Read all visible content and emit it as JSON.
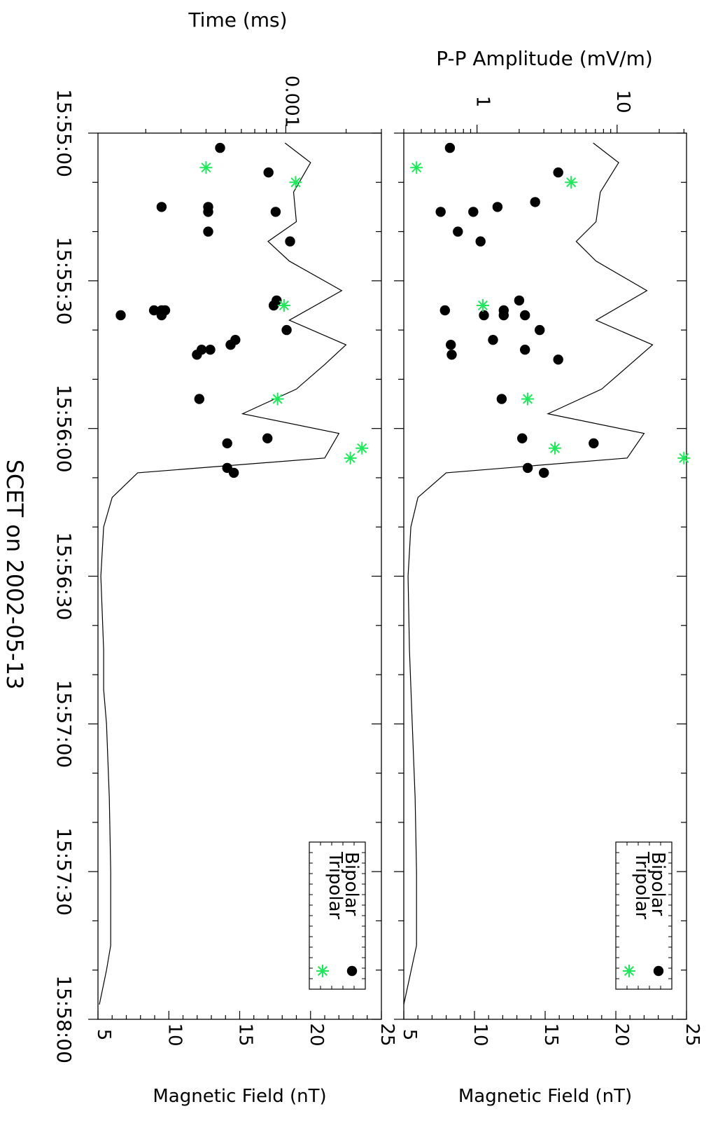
{
  "chart_data": {
    "type": "scatter",
    "x_axis_label": "SCET on 2002-05-13",
    "time_ticks": [
      "15:55:00",
      "15:55:30",
      "15:56:00",
      "15:56:30",
      "15:57:00",
      "15:57:30",
      "15:58:00"
    ],
    "panels": [
      {
        "id": "left",
        "top_axis_label": "Time (ms)",
        "top_axis_scale": "log",
        "top_axis_ticks": [
          "0.001"
        ],
        "bottom_axis_label": "Magnetic Field (nT)",
        "bottom_axis_ticks": [
          "5",
          "10",
          "15",
          "20",
          "25"
        ],
        "bottom_axis_range": [
          5,
          25
        ],
        "legend": {
          "entries": [
            {
              "label": "Bipolar",
              "marker": "filled-circle"
            },
            {
              "label": "Tripolar",
              "marker": "asterisk"
            }
          ]
        },
        "magnetic_field": [
          {
            "t": "15:55:02",
            "b": 18.2
          },
          {
            "t": "15:55:06",
            "b": 20.0
          },
          {
            "t": "15:55:12",
            "b": 18.8
          },
          {
            "t": "15:55:18",
            "b": 19.0
          },
          {
            "t": "15:55:22",
            "b": 17.0
          },
          {
            "t": "15:55:26",
            "b": 18.5
          },
          {
            "t": "15:55:32",
            "b": 22.2
          },
          {
            "t": "15:55:38",
            "b": 18.5
          },
          {
            "t": "15:55:43",
            "b": 22.5
          },
          {
            "t": "15:55:47",
            "b": 21.0
          },
          {
            "t": "15:55:52",
            "b": 19.0
          },
          {
            "t": "15:55:57",
            "b": 15.2
          },
          {
            "t": "15:56:01",
            "b": 22.0
          },
          {
            "t": "15:56:06",
            "b": 21.0
          },
          {
            "t": "15:56:09",
            "b": 7.8
          },
          {
            "t": "15:56:14",
            "b": 6.0
          },
          {
            "t": "15:56:20",
            "b": 5.4
          },
          {
            "t": "15:56:30",
            "b": 5.2
          },
          {
            "t": "15:56:45",
            "b": 5.4
          },
          {
            "t": "15:56:53",
            "b": 5.4
          },
          {
            "t": "15:57:00",
            "b": 5.6
          },
          {
            "t": "15:57:15",
            "b": 5.8
          },
          {
            "t": "15:57:30",
            "b": 5.9
          },
          {
            "t": "15:57:45",
            "b": 5.9
          },
          {
            "t": "15:57:50",
            "b": 5.6
          },
          {
            "t": "15:57:57",
            "b": 5.1
          }
        ],
        "bipolar_ms": [
          {
            "t": "15:55:03",
            "v": 0.00047
          },
          {
            "t": "15:55:08",
            "v": 0.00082
          },
          {
            "t": "15:55:15",
            "v": 0.00024
          },
          {
            "t": "15:55:15",
            "v": 0.00041
          },
          {
            "t": "15:55:16",
            "v": 0.00041
          },
          {
            "t": "15:55:16",
            "v": 0.00089
          },
          {
            "t": "15:55:20",
            "v": 0.00041
          },
          {
            "t": "15:55:22",
            "v": 0.00105
          },
          {
            "t": "15:55:34",
            "v": 0.0009
          },
          {
            "t": "15:55:35",
            "v": 0.00087
          },
          {
            "t": "15:55:36",
            "v": 0.00022
          },
          {
            "t": "15:55:36",
            "v": 0.00025
          },
          {
            "t": "15:55:36",
            "v": 0.00024
          },
          {
            "t": "15:55:37",
            "v": 0.00015
          },
          {
            "t": "15:55:37",
            "v": 0.00024
          },
          {
            "t": "15:55:40",
            "v": 0.00101
          },
          {
            "t": "15:55:42",
            "v": 0.00056
          },
          {
            "t": "15:55:43",
            "v": 0.00053
          },
          {
            "t": "15:55:44",
            "v": 0.00038
          },
          {
            "t": "15:55:44",
            "v": 0.00042
          },
          {
            "t": "15:55:45",
            "v": 0.00036
          },
          {
            "t": "15:55:54",
            "v": 0.00037
          },
          {
            "t": "15:56:02",
            "v": 0.00081
          },
          {
            "t": "15:56:03",
            "v": 0.00051
          },
          {
            "t": "15:56:08",
            "v": 0.00051
          },
          {
            "t": "15:56:09",
            "v": 0.00055
          }
        ],
        "tripolar_ms": [
          {
            "t": "15:55:07",
            "v": 0.0004
          },
          {
            "t": "15:55:10",
            "v": 0.00112
          },
          {
            "t": "15:55:35",
            "v": 0.00098
          },
          {
            "t": "15:55:54",
            "v": 0.00091
          },
          {
            "t": "15:56:04",
            "v": 0.0024
          },
          {
            "t": "15:56:06",
            "v": 0.0021
          }
        ]
      },
      {
        "id": "right",
        "top_axis_label": "P-P Amplitude (mV/m)",
        "top_axis_scale": "log",
        "top_axis_ticks": [
          "1",
          "10"
        ],
        "bottom_axis_label": "Magnetic Field (nT)",
        "bottom_axis_ticks": [
          "5",
          "10",
          "15",
          "20",
          "25"
        ],
        "bottom_axis_range": [
          5,
          25
        ],
        "legend": {
          "entries": [
            {
              "label": "Bipolar",
              "marker": "filled-circle"
            },
            {
              "label": "Tripolar",
              "marker": "asterisk"
            }
          ]
        },
        "magnetic_field": [
          {
            "t": "15:55:02",
            "b": 18.4
          },
          {
            "t": "15:55:06",
            "b": 20.2
          },
          {
            "t": "15:55:12",
            "b": 18.9
          },
          {
            "t": "15:55:18",
            "b": 18.6
          },
          {
            "t": "15:55:22",
            "b": 17.2
          },
          {
            "t": "15:55:26",
            "b": 18.6
          },
          {
            "t": "15:55:32",
            "b": 22.2
          },
          {
            "t": "15:55:38",
            "b": 18.6
          },
          {
            "t": "15:55:43",
            "b": 22.6
          },
          {
            "t": "15:55:47",
            "b": 21.0
          },
          {
            "t": "15:55:52",
            "b": 19.0
          },
          {
            "t": "15:55:57",
            "b": 15.2
          },
          {
            "t": "15:56:01",
            "b": 22.0
          },
          {
            "t": "15:56:06",
            "b": 20.8
          },
          {
            "t": "15:56:09",
            "b": 8.0
          },
          {
            "t": "15:56:14",
            "b": 6.0
          },
          {
            "t": "15:56:20",
            "b": 5.5
          },
          {
            "t": "15:56:30",
            "b": 5.3
          },
          {
            "t": "15:56:45",
            "b": 5.4
          },
          {
            "t": "15:57:00",
            "b": 5.6
          },
          {
            "t": "15:57:15",
            "b": 5.8
          },
          {
            "t": "15:57:30",
            "b": 5.9
          },
          {
            "t": "15:57:45",
            "b": 5.9
          },
          {
            "t": "15:57:57",
            "b": 5.0
          }
        ],
        "bipolar_amp": [
          {
            "t": "15:55:03",
            "v": 0.64
          },
          {
            "t": "15:55:08",
            "v": 3.8
          },
          {
            "t": "15:55:14",
            "v": 2.6
          },
          {
            "t": "15:55:15",
            "v": 1.4
          },
          {
            "t": "15:55:16",
            "v": 0.55
          },
          {
            "t": "15:55:16",
            "v": 0.94
          },
          {
            "t": "15:55:20",
            "v": 0.73
          },
          {
            "t": "15:55:22",
            "v": 1.06
          },
          {
            "t": "15:55:34",
            "v": 2.0
          },
          {
            "t": "15:55:36",
            "v": 0.59
          },
          {
            "t": "15:55:36",
            "v": 1.55
          },
          {
            "t": "15:55:37",
            "v": 1.12
          },
          {
            "t": "15:55:37",
            "v": 1.55
          },
          {
            "t": "15:55:37",
            "v": 2.2
          },
          {
            "t": "15:55:40",
            "v": 2.8
          },
          {
            "t": "15:55:42",
            "v": 1.3
          },
          {
            "t": "15:55:43",
            "v": 0.65
          },
          {
            "t": "15:55:44",
            "v": 2.2
          },
          {
            "t": "15:55:45",
            "v": 0.66
          },
          {
            "t": "15:55:46",
            "v": 3.8
          },
          {
            "t": "15:55:54",
            "v": 1.5
          },
          {
            "t": "15:56:02",
            "v": 2.1
          },
          {
            "t": "15:56:03",
            "v": 6.8
          },
          {
            "t": "15:56:08",
            "v": 2.3
          },
          {
            "t": "15:56:09",
            "v": 3.0
          }
        ],
        "tripolar_amp": [
          {
            "t": "15:55:07",
            "v": 0.37
          },
          {
            "t": "15:55:10",
            "v": 4.7
          },
          {
            "t": "15:55:35",
            "v": 1.1
          },
          {
            "t": "15:55:54",
            "v": 2.3
          },
          {
            "t": "15:56:04",
            "v": 3.6
          },
          {
            "t": "15:56:06",
            "v": 30
          }
        ]
      }
    ]
  }
}
